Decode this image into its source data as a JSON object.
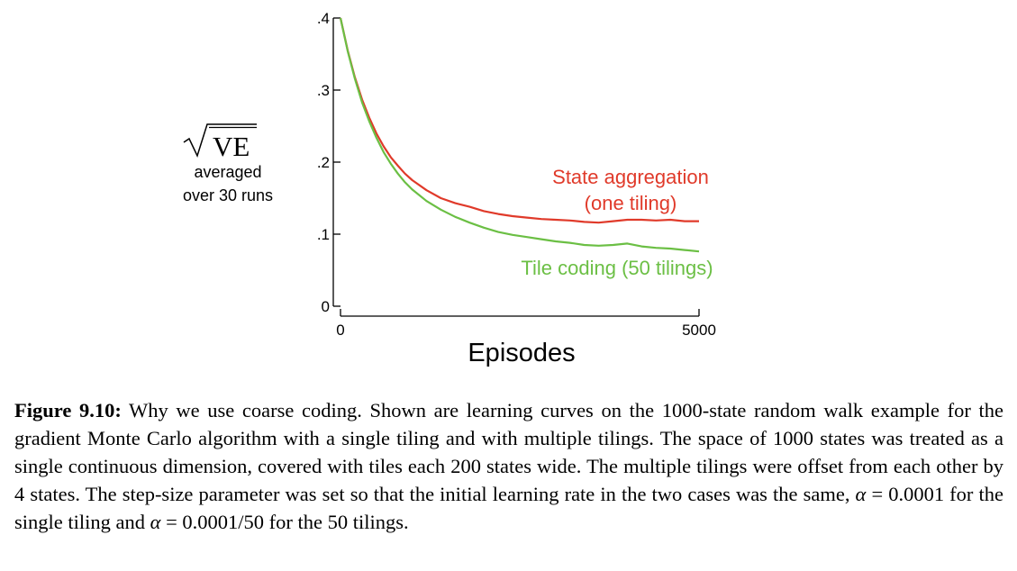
{
  "chart_data": {
    "type": "line",
    "xlabel": "Episodes",
    "ylabel_math": "VE",
    "ylabel_lines": [
      "averaged",
      "over 30 runs"
    ],
    "xlim": [
      0,
      5000
    ],
    "ylim": [
      0,
      0.4
    ],
    "x_ticks": [
      0,
      5000
    ],
    "x_tick_labels": [
      "0",
      "5000"
    ],
    "y_ticks": [
      0,
      0.1,
      0.2,
      0.3,
      0.4
    ],
    "y_tick_labels": [
      "0",
      ".1",
      ".2",
      ".3",
      ".4"
    ],
    "grid": false,
    "series": [
      {
        "name": "State aggregation\n(one tiling)",
        "label_lines": [
          "State aggregation",
          "(one tiling)"
        ],
        "color": "#e03a2a",
        "x": [
          0,
          100,
          200,
          300,
          400,
          500,
          600,
          700,
          800,
          900,
          1000,
          1200,
          1400,
          1600,
          1800,
          2000,
          2200,
          2400,
          2600,
          2800,
          3000,
          3200,
          3400,
          3600,
          3800,
          4000,
          4200,
          4400,
          4600,
          4800,
          5000
        ],
        "y": [
          0.4,
          0.355,
          0.318,
          0.287,
          0.262,
          0.24,
          0.222,
          0.207,
          0.195,
          0.184,
          0.175,
          0.161,
          0.15,
          0.143,
          0.138,
          0.132,
          0.128,
          0.125,
          0.123,
          0.121,
          0.12,
          0.119,
          0.117,
          0.116,
          0.118,
          0.12,
          0.12,
          0.119,
          0.12,
          0.118,
          0.118
        ]
      },
      {
        "name": "Tile coding (50 tilings)",
        "label_lines": [
          "Tile coding (50 tilings)"
        ],
        "color": "#6bbf44",
        "x": [
          0,
          100,
          200,
          300,
          400,
          500,
          600,
          700,
          800,
          900,
          1000,
          1200,
          1400,
          1600,
          1800,
          2000,
          2200,
          2400,
          2600,
          2800,
          3000,
          3200,
          3400,
          3600,
          3800,
          4000,
          4200,
          4400,
          4600,
          4800,
          5000
        ],
        "y": [
          0.4,
          0.354,
          0.316,
          0.283,
          0.257,
          0.234,
          0.214,
          0.198,
          0.184,
          0.172,
          0.162,
          0.146,
          0.134,
          0.124,
          0.116,
          0.109,
          0.103,
          0.099,
          0.096,
          0.093,
          0.09,
          0.088,
          0.085,
          0.084,
          0.085,
          0.087,
          0.083,
          0.081,
          0.08,
          0.078,
          0.076
        ]
      }
    ]
  },
  "caption": {
    "label": "Figure 9.10:",
    "text_1": " Why we use coarse coding. Shown are learning curves on the 1000-state random walk example for the gradient Monte Carlo algorithm with a single tiling and with multiple tilings. The space of 1000 states was treated as a single continuous dimension, covered with tiles each 200 states wide. The multiple tilings were offset from each other by 4 states. The step-size parameter was set so that the initial learning rate in the two cases was the same, ",
    "alpha_1": "α",
    "eq_1": " = 0.0001 for the single tiling and ",
    "alpha_2": "α",
    "eq_2": " = 0.0001/50 for the 50 tilings."
  }
}
